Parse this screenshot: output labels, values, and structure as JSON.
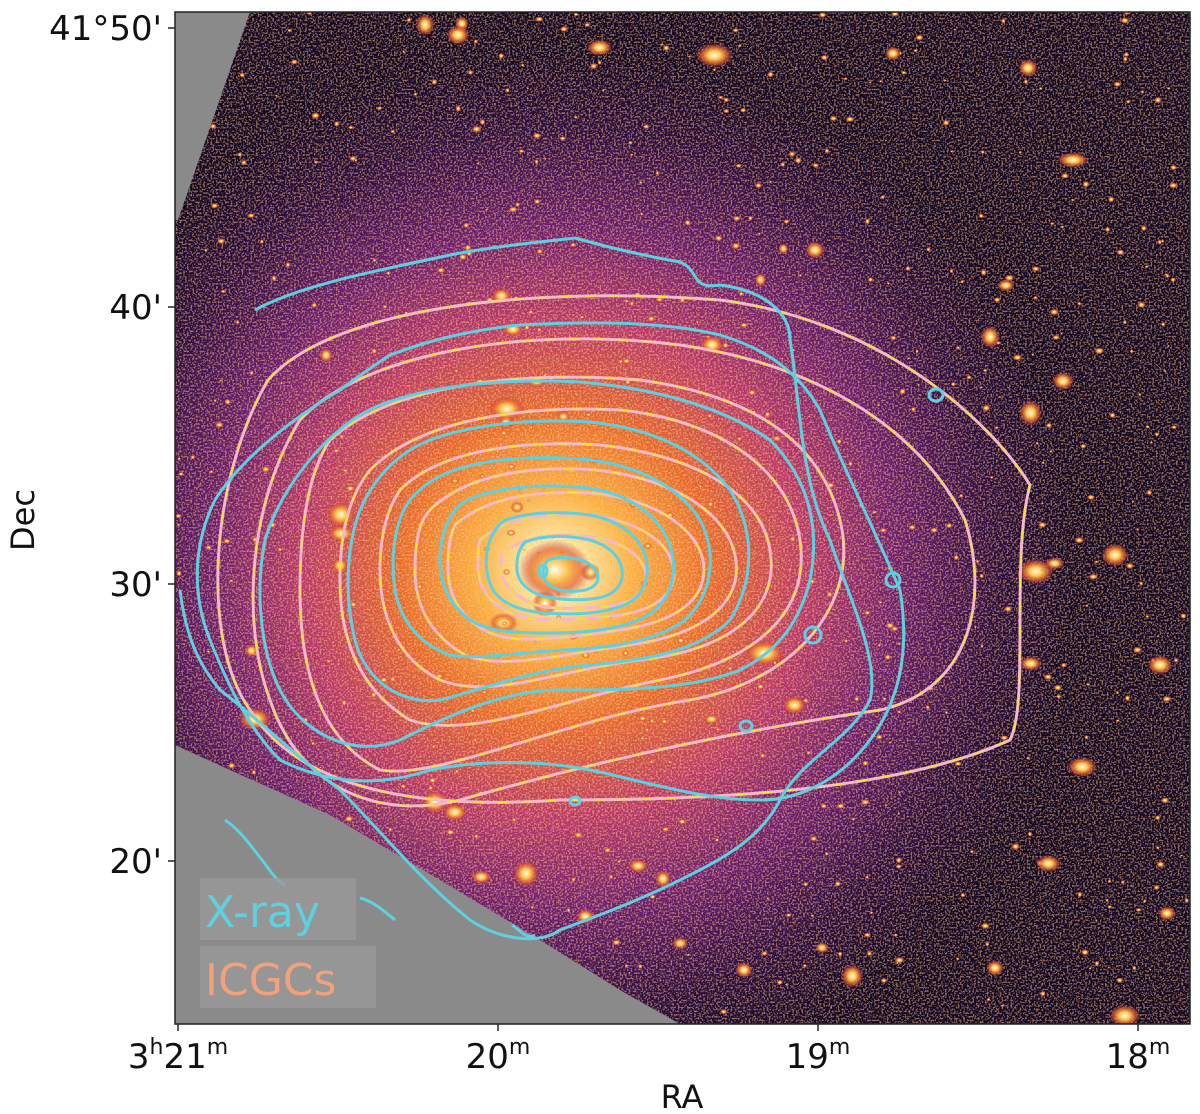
{
  "figure": {
    "xlabel": "RA",
    "ylabel": "Dec",
    "ra_ticks": [
      {
        "h": "3",
        "hunit": "h",
        "m": "21",
        "munit": "m"
      },
      {
        "h": "",
        "hunit": "",
        "m": "20",
        "munit": "m"
      },
      {
        "h": "",
        "hunit": "",
        "m": "19",
        "munit": "m"
      },
      {
        "h": "",
        "hunit": "",
        "m": "18",
        "munit": "m"
      }
    ],
    "dec_ticks": [
      "41°50'",
      "40'",
      "30'",
      "20'"
    ],
    "legend": [
      {
        "label": "X-ray",
        "color": "#5fd0e0"
      },
      {
        "label": "ICGCs",
        "color": "#f3a17a"
      }
    ],
    "colors": {
      "xray_contour": "#5fd0e0",
      "icgc_contour_outer": "#f4b8c8",
      "icgc_contour_dash": "#f2e23a",
      "mask": "#8a8a8a"
    },
    "colormap": "inferno"
  }
}
